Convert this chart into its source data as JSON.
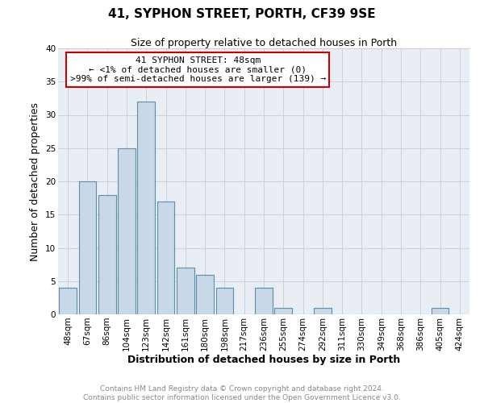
{
  "title": "41, SYPHON STREET, PORTH, CF39 9SE",
  "subtitle": "Size of property relative to detached houses in Porth",
  "xlabel": "Distribution of detached houses by size in Porth",
  "ylabel": "Number of detached properties",
  "bar_labels": [
    "48sqm",
    "67sqm",
    "86sqm",
    "104sqm",
    "123sqm",
    "142sqm",
    "161sqm",
    "180sqm",
    "198sqm",
    "217sqm",
    "236sqm",
    "255sqm",
    "274sqm",
    "292sqm",
    "311sqm",
    "330sqm",
    "349sqm",
    "368sqm",
    "386sqm",
    "405sqm",
    "424sqm"
  ],
  "bar_values": [
    4,
    20,
    18,
    25,
    32,
    17,
    7,
    6,
    4,
    0,
    4,
    1,
    0,
    1,
    0,
    0,
    0,
    0,
    0,
    1,
    0
  ],
  "bar_color": "#c8d8e8",
  "bar_edge_color": "#5b8fa8",
  "ylim": [
    0,
    40
  ],
  "yticks": [
    0,
    5,
    10,
    15,
    20,
    25,
    30,
    35,
    40
  ],
  "annotation_line1": "41 SYPHON STREET: 48sqm",
  "annotation_line2": "← <1% of detached houses are smaller (0)",
  "annotation_line3": ">99% of semi-detached houses are larger (139) →",
  "annotation_box_color": "#ffffff",
  "annotation_border_color": "#cc0000",
  "footer_line1": "Contains HM Land Registry data © Crown copyright and database right 2024.",
  "footer_line2": "Contains public sector information licensed under the Open Government Licence v3.0.",
  "background_color": "#ffffff",
  "plot_bg_color": "#e8eef4",
  "grid_color": "#c8d0d8",
  "title_fontsize": 11,
  "subtitle_fontsize": 9,
  "axis_label_fontsize": 9,
  "tick_fontsize": 7.5,
  "annotation_fontsize": 8,
  "footer_fontsize": 6.5
}
